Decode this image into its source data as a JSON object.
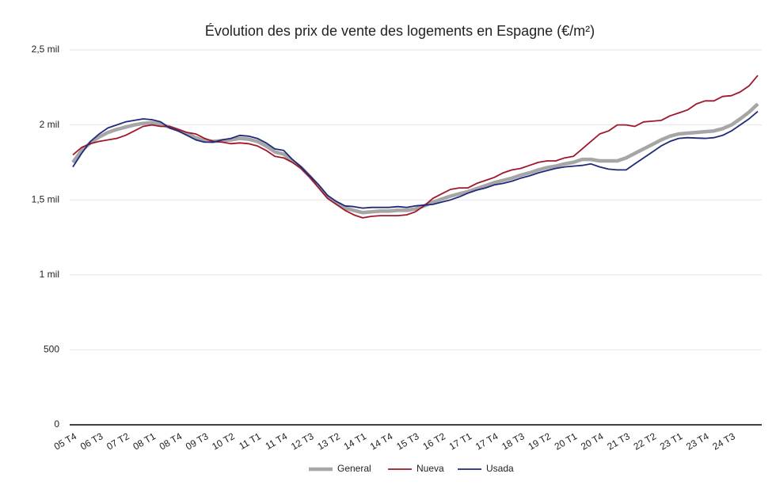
{
  "chart_data": {
    "type": "line",
    "title": "Évolution des prix de vente des logements en Espagne (€/m²)",
    "categories": [
      "05 T4",
      null,
      null,
      "06 T3",
      null,
      null,
      "07 T2",
      null,
      null,
      "08 T1",
      null,
      null,
      "08 T4",
      null,
      null,
      "09 T3",
      null,
      null,
      "10 T2",
      null,
      null,
      "11 T1",
      null,
      null,
      "11 T4",
      null,
      null,
      "12 T3",
      null,
      null,
      "13 T2",
      null,
      null,
      "14 T1",
      null,
      null,
      "14 T4",
      null,
      null,
      "15 T3",
      null,
      null,
      "16 T2",
      null,
      null,
      "17 T1",
      null,
      null,
      "17 T4",
      null,
      null,
      "18 T3",
      null,
      null,
      "19 T2",
      null,
      null,
      "20 T1",
      null,
      null,
      "20 T4",
      null,
      null,
      "21 T3",
      null,
      null,
      "22 T2",
      null,
      null,
      "23 T1",
      null,
      null,
      "23 T4",
      null,
      null,
      "24 T3",
      null,
      null,
      null
    ],
    "series": [
      {
        "name": "General",
        "color": "#a6a6a6",
        "values": [
          1750,
          1830,
          1880,
          1920,
          1950,
          1970,
          1985,
          2000,
          2010,
          2015,
          2005,
          1985,
          1965,
          1940,
          1915,
          1895,
          1890,
          1895,
          1900,
          1910,
          1905,
          1890,
          1860,
          1820,
          1805,
          1760,
          1715,
          1655,
          1590,
          1520,
          1480,
          1445,
          1430,
          1415,
          1420,
          1425,
          1425,
          1430,
          1430,
          1440,
          1460,
          1485,
          1505,
          1525,
          1540,
          1555,
          1575,
          1595,
          1615,
          1630,
          1645,
          1665,
          1680,
          1700,
          1715,
          1725,
          1740,
          1750,
          1770,
          1770,
          1760,
          1760,
          1760,
          1780,
          1810,
          1840,
          1870,
          1900,
          1925,
          1940,
          1945,
          1950,
          1955,
          1960,
          1975,
          2000,
          2040,
          2085,
          2140
        ]
      },
      {
        "name": "Nueva",
        "color": "#a0162a",
        "values": [
          1800,
          1850,
          1875,
          1890,
          1900,
          1910,
          1930,
          1960,
          1990,
          2000,
          1990,
          1990,
          1970,
          1950,
          1940,
          1910,
          1890,
          1885,
          1875,
          1880,
          1875,
          1860,
          1830,
          1790,
          1780,
          1750,
          1710,
          1650,
          1580,
          1510,
          1470,
          1430,
          1400,
          1380,
          1390,
          1395,
          1395,
          1395,
          1400,
          1420,
          1460,
          1510,
          1540,
          1570,
          1580,
          1580,
          1610,
          1630,
          1650,
          1680,
          1700,
          1710,
          1730,
          1750,
          1760,
          1760,
          1780,
          1790,
          1840,
          1890,
          1940,
          1960,
          2000,
          2000,
          1990,
          2020,
          2025,
          2030,
          2060,
          2080,
          2100,
          2140,
          2160,
          2160,
          2190,
          2195,
          2220,
          2260,
          2330
        ]
      },
      {
        "name": "Usada",
        "color": "#1f2a7a",
        "values": [
          1720,
          1810,
          1890,
          1940,
          1980,
          2000,
          2020,
          2030,
          2040,
          2035,
          2020,
          1980,
          1960,
          1930,
          1900,
          1885,
          1885,
          1900,
          1910,
          1930,
          1925,
          1910,
          1880,
          1840,
          1830,
          1770,
          1720,
          1660,
          1600,
          1530,
          1490,
          1460,
          1455,
          1445,
          1450,
          1450,
          1450,
          1455,
          1450,
          1460,
          1465,
          1470,
          1485,
          1500,
          1520,
          1545,
          1565,
          1580,
          1600,
          1610,
          1625,
          1645,
          1660,
          1680,
          1695,
          1710,
          1720,
          1725,
          1730,
          1740,
          1720,
          1705,
          1700,
          1700,
          1740,
          1780,
          1820,
          1860,
          1890,
          1910,
          1915,
          1912,
          1910,
          1915,
          1930,
          1960,
          2000,
          2040,
          2090
        ]
      }
    ],
    "ylim": [
      0,
      2500
    ],
    "yticks": [
      0,
      500,
      {
        "value": 1000,
        "label": "1 mil"
      },
      {
        "value": 1500,
        "label": "1,5 mil"
      },
      {
        "value": 2000,
        "label": "2 mil"
      },
      {
        "value": 2500,
        "label": "2,5 mil"
      }
    ],
    "grid": true,
    "legend": "bottom"
  }
}
